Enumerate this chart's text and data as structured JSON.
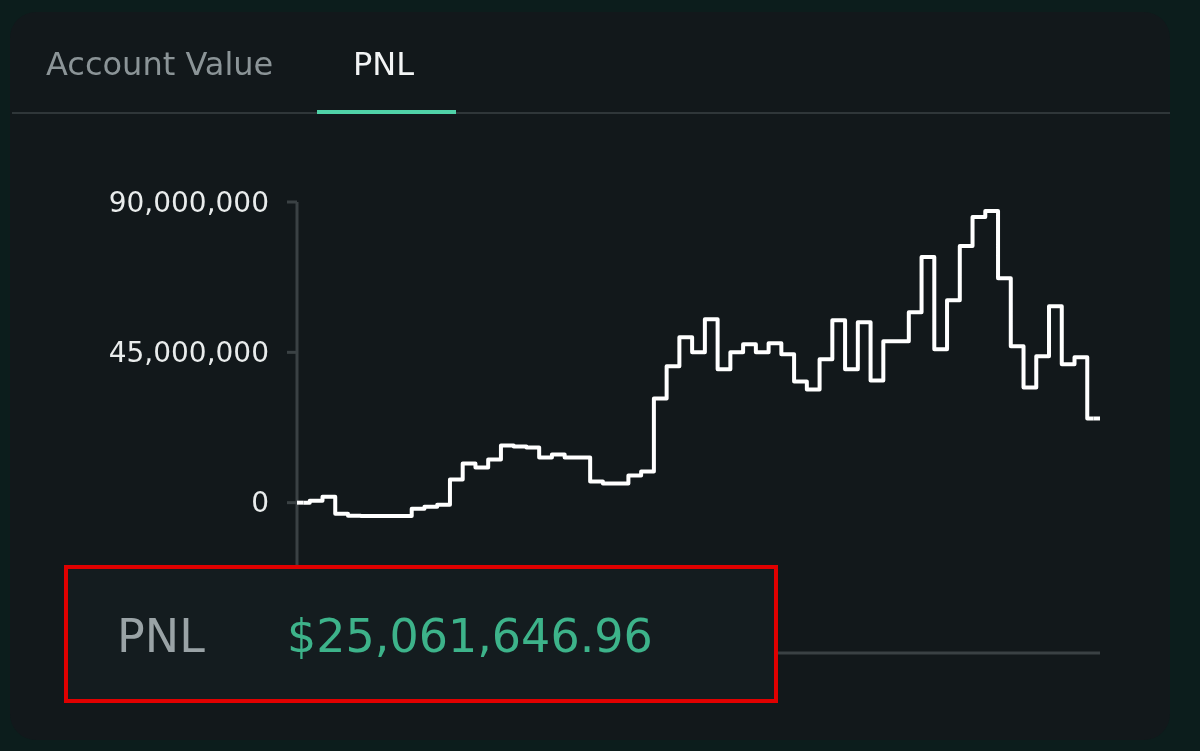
{
  "chart_data": {
    "type": "step",
    "categories": [
      null,
      null,
      null,
      null,
      null,
      null,
      null,
      null,
      null,
      null,
      null,
      null,
      null,
      null,
      null,
      null,
      null,
      null,
      null,
      null,
      null,
      null,
      null,
      null,
      null,
      null,
      null,
      null,
      null,
      null,
      null,
      null,
      null,
      null,
      null,
      null,
      null,
      null,
      null,
      null,
      null,
      null,
      null,
      null,
      null,
      null,
      null,
      null,
      null,
      null,
      null,
      null,
      null,
      null,
      null,
      null,
      null,
      null,
      null,
      null,
      null,
      null,
      null
    ],
    "values": [
      0,
      600000,
      1800000,
      -3300000,
      -3900000,
      -4000000,
      -4000000,
      -4000000,
      -4000000,
      -1800000,
      -1200000,
      -600000,
      6900000,
      11700000,
      10500000,
      12900000,
      17100000,
      16800000,
      16500000,
      13500000,
      14400000,
      13500000,
      13500000,
      6300000,
      5700000,
      5700000,
      8100000,
      9300000,
      31200000,
      40800000,
      49500000,
      45000000,
      54900000,
      39900000,
      45000000,
      47400000,
      45000000,
      47700000,
      44400000,
      36300000,
      33900000,
      42900000,
      54600000,
      39900000,
      54000000,
      36600000,
      48300000,
      48300000,
      57000000,
      73500000,
      45900000,
      60600000,
      76800000,
      85500000,
      87300000,
      67200000,
      46800000,
      34500000,
      43800000,
      58800000,
      41400000,
      43500000,
      25200000
    ],
    "color": "#ffffff",
    "ylim": [
      -45000000,
      90000000
    ],
    "yticks": [
      {
        "value": 0,
        "label": "0"
      },
      {
        "value": 45000000,
        "label": "45,000,000"
      },
      {
        "value": 90000000,
        "label": "90,000,000"
      }
    ],
    "tick_labels": "y",
    "grid": false,
    "annotations": [
      "Account Value",
      "PNL",
      "PNL",
      "$25,061,646.96"
    ]
  }
}
